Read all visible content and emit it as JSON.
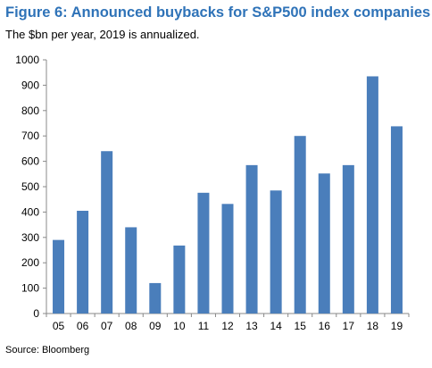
{
  "header": {
    "title": "Figure 6: Announced buybacks for S&P500 index companies",
    "subtitle": "The $bn per year, 2019 is annualized."
  },
  "footer": {
    "source": "Source: Bloomberg"
  },
  "chart_data": {
    "type": "bar",
    "title": "Figure 6: Announced buybacks for S&P500 index companies",
    "subtitle": "The $bn per year, 2019 is annualized.",
    "xlabel": "",
    "ylabel": "",
    "categories": [
      "05",
      "06",
      "07",
      "08",
      "09",
      "10",
      "11",
      "12",
      "13",
      "14",
      "15",
      "16",
      "17",
      "18",
      "19"
    ],
    "values": [
      290,
      405,
      640,
      340,
      120,
      268,
      476,
      432,
      585,
      485,
      700,
      552,
      585,
      935,
      738
    ],
    "ylim": [
      0,
      1000
    ],
    "yticks": [
      0,
      100,
      200,
      300,
      400,
      500,
      600,
      700,
      800,
      900,
      1000
    ],
    "grid": false,
    "legend": "none",
    "bar_color": "#4a7ebb",
    "axis_color": "#888888",
    "title_color": "#2f73b8"
  }
}
